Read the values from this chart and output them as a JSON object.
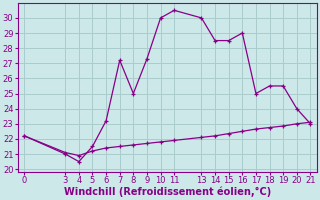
{
  "x_upper": [
    0,
    3,
    4,
    5,
    6,
    7,
    8,
    9,
    10,
    11,
    13,
    14,
    15,
    16,
    17,
    18,
    19,
    20,
    21
  ],
  "y_upper": [
    22.2,
    21.0,
    20.5,
    21.5,
    23.2,
    27.2,
    25.0,
    27.3,
    30.0,
    30.5,
    30.0,
    28.5,
    28.5,
    29.0,
    25.0,
    25.5,
    25.5,
    24.0,
    23.0
  ],
  "x_lower": [
    0,
    3,
    4,
    5,
    6,
    7,
    8,
    9,
    10,
    11,
    13,
    14,
    15,
    16,
    17,
    18,
    19,
    20,
    21
  ],
  "y_lower": [
    22.2,
    21.1,
    20.9,
    21.2,
    21.4,
    21.5,
    21.6,
    21.7,
    21.8,
    21.9,
    22.1,
    22.2,
    22.35,
    22.5,
    22.65,
    22.75,
    22.85,
    23.0,
    23.1
  ],
  "line_color": "#880088",
  "marker": "+",
  "bg_color": "#cce8e8",
  "grid_color": "#aacccc",
  "xlabel": "Windchill (Refroidissement éolien,°C)",
  "ylabel": "",
  "xlim": [
    -0.5,
    21.5
  ],
  "ylim": [
    19.8,
    31.0
  ],
  "yticks": [
    20,
    21,
    22,
    23,
    24,
    25,
    26,
    27,
    28,
    29,
    30
  ],
  "xticks": [
    0,
    3,
    4,
    5,
    6,
    7,
    8,
    9,
    10,
    11,
    13,
    14,
    15,
    16,
    17,
    18,
    19,
    20,
    21
  ],
  "xlabel_color": "#880088",
  "xlabel_fontsize": 7.0,
  "tick_fontsize": 6.0,
  "tick_color": "#880088"
}
